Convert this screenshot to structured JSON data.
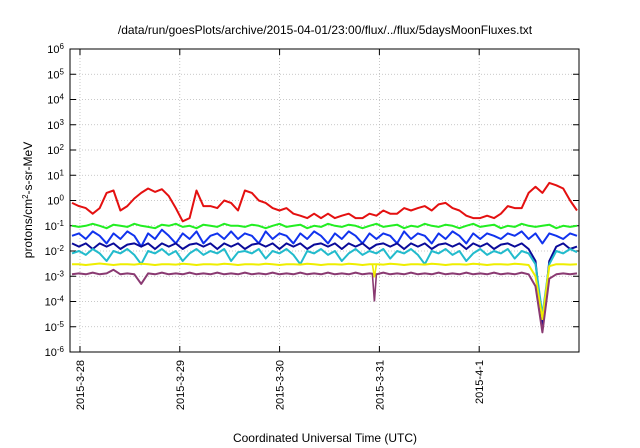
{
  "chart_data": {
    "type": "line",
    "title": "/data/run/goesPlots/archive/2015-04-01/23:00/flux/../flux/5daysMoonFluxes.txt",
    "xlabel": "Coordinated Universal Time (UTC)",
    "ylabel": {
      "base": "protons/cm",
      "sup": "2",
      "rest": "-s-sr-MeV"
    },
    "yscale": "log",
    "ylim_exp": [
      -6,
      6
    ],
    "y_ticks": [
      {
        "base": "10",
        "exp": "-6"
      },
      {
        "base": "10",
        "exp": "-5"
      },
      {
        "base": "10",
        "exp": "-4"
      },
      {
        "base": "10",
        "exp": "-3"
      },
      {
        "base": "10",
        "exp": "-2"
      },
      {
        "base": "10",
        "exp": "-1"
      },
      {
        "base": "10",
        "exp": "0"
      },
      {
        "base": "10",
        "exp": "1"
      },
      {
        "base": "10",
        "exp": "2"
      },
      {
        "base": "10",
        "exp": "3"
      },
      {
        "base": "10",
        "exp": "4"
      },
      {
        "base": "10",
        "exp": "5"
      },
      {
        "base": "10",
        "exp": "6"
      }
    ],
    "x_ticks": [
      "2015-3-28",
      "2015-3-29",
      "2015-3-30",
      "2015-3-31",
      "2015-4-1"
    ],
    "x_tick_days": [
      0,
      1,
      2,
      3,
      4
    ],
    "xlim_days": [
      -0.1,
      5.0
    ],
    "grid": true,
    "series": [
      {
        "color": "#e41010",
        "values": [
          0.8,
          0.6,
          0.5,
          0.3,
          0.5,
          2.0,
          2.5,
          0.4,
          0.6,
          1.2,
          2.0,
          3.0,
          2.2,
          2.8,
          1.5,
          0.5,
          0.15,
          0.2,
          2.5,
          0.6,
          0.6,
          0.5,
          1.0,
          0.8,
          0.4,
          2.5,
          2.0,
          1.0,
          0.8,
          0.5,
          0.4,
          0.5,
          0.3,
          0.25,
          0.2,
          0.3,
          0.2,
          0.3,
          0.2,
          0.25,
          0.3,
          0.2,
          0.2,
          0.3,
          0.25,
          0.4,
          0.3,
          0.3,
          0.5,
          0.4,
          0.5,
          0.6,
          0.4,
          0.7,
          0.8,
          0.5,
          0.4,
          0.25,
          0.2,
          0.2,
          0.25,
          0.2,
          0.3,
          0.6,
          0.5,
          0.5,
          2.0,
          3.5,
          2.0,
          5.0,
          4.0,
          3.0,
          1.0,
          0.4
        ]
      },
      {
        "color": "#22ee22",
        "values": [
          0.1,
          0.09,
          0.1,
          0.12,
          0.1,
          0.08,
          0.11,
          0.1,
          0.09,
          0.12,
          0.1,
          0.09,
          0.08,
          0.11,
          0.1,
          0.12,
          0.09,
          0.1,
          0.08,
          0.11,
          0.1,
          0.09,
          0.12,
          0.1,
          0.1,
          0.09,
          0.11,
          0.1,
          0.08,
          0.1,
          0.12,
          0.09,
          0.1,
          0.11,
          0.08,
          0.1,
          0.09,
          0.12,
          0.1,
          0.09,
          0.11,
          0.1,
          0.08,
          0.1,
          0.12,
          0.09,
          0.1,
          0.11,
          0.08,
          0.1,
          0.09,
          0.12,
          0.1,
          0.09,
          0.11,
          0.1,
          0.08,
          0.1,
          0.12,
          0.09,
          0.1,
          0.11,
          0.08,
          0.1,
          0.09,
          0.12,
          0.1,
          0.09,
          0.1,
          0.11,
          0.08,
          0.1,
          0.09,
          0.1
        ]
      },
      {
        "color": "#1133ee",
        "values": [
          0.04,
          0.05,
          0.03,
          0.06,
          0.04,
          0.02,
          0.05,
          0.03,
          0.06,
          0.04,
          0.015,
          0.05,
          0.03,
          0.07,
          0.04,
          0.02,
          0.05,
          0.03,
          0.06,
          0.02,
          0.04,
          0.05,
          0.03,
          0.06,
          0.03,
          0.05,
          0.04,
          0.02,
          0.06,
          0.03,
          0.05,
          0.04,
          0.02,
          0.05,
          0.03,
          0.06,
          0.04,
          0.02,
          0.05,
          0.03,
          0.06,
          0.04,
          0.02,
          0.05,
          0.03,
          0.05,
          0.04,
          0.02,
          0.06,
          0.03,
          0.05,
          0.04,
          0.02,
          0.05,
          0.03,
          0.06,
          0.04,
          0.02,
          0.05,
          0.03,
          0.05,
          0.04,
          0.03,
          0.05,
          0.04,
          0.06,
          0.03,
          0.05,
          0.02,
          0.05,
          0.04,
          0.03,
          0.05,
          0.04
        ]
      },
      {
        "color": "#0a0a99",
        "values": [
          0.02,
          0.015,
          0.02,
          0.012,
          0.02,
          0.015,
          0.02,
          0.012,
          0.018,
          0.02,
          0.015,
          0.02,
          0.012,
          0.02,
          0.015,
          0.02,
          0.012,
          0.018,
          0.02,
          0.015,
          0.02,
          0.012,
          0.02,
          0.015,
          0.02,
          0.012,
          0.018,
          0.02,
          0.015,
          0.02,
          0.012,
          0.02,
          0.015,
          0.02,
          0.012,
          0.018,
          0.02,
          0.015,
          0.02,
          0.012,
          0.02,
          0.015,
          0.02,
          0.012,
          0.018,
          0.02,
          0.015,
          0.02,
          0.012,
          0.02,
          0.015,
          0.02,
          0.012,
          0.018,
          0.02,
          0.015,
          0.02,
          0.012,
          0.02,
          0.015,
          0.02,
          0.012,
          0.018,
          0.02,
          0.015,
          0.02,
          0.012,
          0.004,
          1e-05,
          0.004,
          0.015,
          0.02,
          0.012,
          0.015
        ]
      },
      {
        "color": "#22bbcc",
        "values": [
          0.008,
          0.01,
          0.007,
          0.012,
          0.008,
          0.004,
          0.01,
          0.008,
          0.012,
          0.007,
          0.003,
          0.01,
          0.008,
          0.012,
          0.007,
          0.01,
          0.004,
          0.008,
          0.012,
          0.007,
          0.01,
          0.008,
          0.012,
          0.004,
          0.009,
          0.01,
          0.008,
          0.012,
          0.005,
          0.01,
          0.008,
          0.012,
          0.007,
          0.003,
          0.01,
          0.008,
          0.012,
          0.007,
          0.01,
          0.004,
          0.008,
          0.012,
          0.007,
          0.01,
          0.008,
          0.012,
          0.005,
          0.01,
          0.008,
          0.012,
          0.007,
          0.003,
          0.01,
          0.008,
          0.012,
          0.007,
          0.01,
          0.004,
          0.008,
          0.012,
          0.007,
          0.01,
          0.008,
          0.012,
          0.005,
          0.01,
          0.008,
          0.003,
          3e-05,
          0.003,
          0.01,
          0.008,
          0.012,
          0.009
        ]
      },
      {
        "color": "#eeee00",
        "values": [
          0.003,
          0.003,
          0.0028,
          0.003,
          0.0032,
          0.003,
          0.0028,
          0.003,
          0.003,
          0.0029,
          0.0031,
          0.003,
          0.0028,
          0.003,
          0.003,
          0.0029,
          0.0031,
          0.003,
          0.0028,
          0.003,
          0.003,
          0.0029,
          0.0031,
          0.003,
          0.0028,
          0.003,
          0.003,
          0.0029,
          0.0031,
          0.003,
          0.0028,
          0.003,
          0.003,
          0.0029,
          0.0031,
          0.003,
          0.0028,
          0.003,
          0.003,
          0.0029,
          0.0031,
          0.003,
          0.0028,
          0.003,
          0.003,
          0.0029,
          0.0031,
          0.003,
          0.0028,
          0.003,
          0.003,
          0.0029,
          0.0031,
          0.003,
          0.0028,
          0.003,
          0.003,
          0.0029,
          0.0031,
          0.003,
          0.0028,
          0.003,
          0.003,
          0.0029,
          0.0031,
          0.003,
          0.0028,
          0.001,
          2e-05,
          0.0025,
          0.003,
          0.003,
          0.0029,
          0.003
        ]
      },
      {
        "color": "#8a3a72",
        "values": [
          0.0012,
          0.0013,
          0.0012,
          0.0014,
          0.0012,
          0.0013,
          0.0018,
          0.0012,
          0.0013,
          0.0012,
          0.0005,
          0.0013,
          0.0012,
          0.0014,
          0.0012,
          0.0013,
          0.0012,
          0.0014,
          0.0012,
          0.0013,
          0.0012,
          0.0014,
          0.0012,
          0.0013,
          0.0012,
          0.0014,
          0.0012,
          0.0013,
          0.0012,
          0.0014,
          0.0012,
          0.0013,
          0.0012,
          0.0014,
          0.0012,
          0.0013,
          0.0012,
          0.0014,
          0.0012,
          0.0013,
          0.0012,
          0.0014,
          0.0012,
          0.0013,
          0.0012,
          0.0014,
          0.0012,
          0.0013,
          0.0012,
          0.0014,
          0.0012,
          0.0013,
          0.0012,
          0.0014,
          0.0012,
          0.0013,
          0.0012,
          0.0014,
          0.0012,
          0.0013,
          0.0012,
          0.0014,
          0.0012,
          0.0013,
          0.0012,
          0.0014,
          0.0012,
          0.0004,
          6e-06,
          0.0008,
          0.0012,
          0.0013,
          0.0012,
          0.0013
        ]
      }
    ],
    "series_day_range": [
      -0.08,
      4.98
    ],
    "dips": [
      {
        "series": 6,
        "day": 2.95,
        "value": 0.0001
      },
      {
        "series": 5,
        "day": 2.95,
        "value": 0.0009
      }
    ]
  }
}
